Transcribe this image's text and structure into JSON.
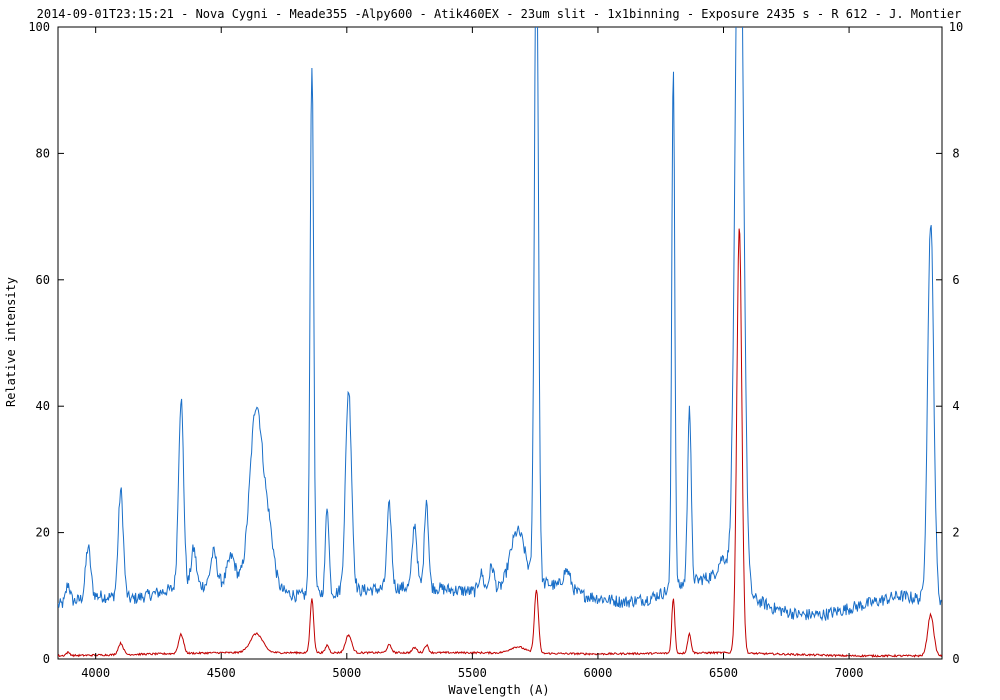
{
  "chart_data": {
    "type": "line",
    "title": "2014-09-01T23:15:21 - Nova Cygni - Meade355 -Alpy600 - Atik460EX - 23um slit - 1x1binning - Exposure 2435 s - R 612 - J. Montier",
    "xlabel": "Wavelength (A)",
    "ylabel": "Relative intensity",
    "xlim": [
      3850,
      7370
    ],
    "ylim": [
      0,
      100
    ],
    "y2lim": [
      0,
      10
    ],
    "x_ticks": [
      4000,
      4500,
      5000,
      5500,
      6000,
      6500,
      7000
    ],
    "y_ticks": [
      0,
      20,
      40,
      60,
      80,
      100
    ],
    "y2_ticks": [
      0,
      2,
      4,
      6,
      8,
      10
    ],
    "grid": false,
    "series": [
      {
        "color": "#1a6fc8",
        "axis": "left",
        "continuum": [
          [
            3850,
            8.5
          ],
          [
            3900,
            9
          ],
          [
            4000,
            10
          ],
          [
            4150,
            9.5
          ],
          [
            4300,
            11
          ],
          [
            4500,
            12
          ],
          [
            4600,
            12.5
          ],
          [
            4800,
            10
          ],
          [
            4950,
            10.5
          ],
          [
            5100,
            11
          ],
          [
            5300,
            11.5
          ],
          [
            5400,
            11
          ],
          [
            5550,
            10.5
          ],
          [
            5650,
            11
          ],
          [
            5800,
            12
          ],
          [
            5950,
            10
          ],
          [
            6100,
            9
          ],
          [
            6200,
            9.5
          ],
          [
            6350,
            12
          ],
          [
            6450,
            13
          ],
          [
            6600,
            10
          ],
          [
            6700,
            8
          ],
          [
            6800,
            7
          ],
          [
            6900,
            7
          ],
          [
            7000,
            8
          ],
          [
            7100,
            9
          ],
          [
            7200,
            10
          ],
          [
            7370,
            9
          ]
        ],
        "peaks": [
          {
            "x": 3890,
            "h": 3,
            "w": 8
          },
          {
            "x": 3970,
            "h": 8,
            "w": 10
          },
          {
            "x": 4100,
            "h": 17,
            "w": 10
          },
          {
            "x": 4340,
            "h": 30,
            "w": 10
          },
          {
            "x": 4390,
            "h": 6,
            "w": 10
          },
          {
            "x": 4470,
            "h": 5,
            "w": 12
          },
          {
            "x": 4540,
            "h": 4,
            "w": 15
          },
          {
            "x": 4640,
            "h": 28,
            "w": 25
          },
          {
            "x": 4690,
            "h": 8,
            "w": 20
          },
          {
            "x": 4861,
            "h": 84,
            "w": 7
          },
          {
            "x": 4922,
            "h": 14,
            "w": 7
          },
          {
            "x": 5007,
            "h": 32,
            "w": 12
          },
          {
            "x": 5169,
            "h": 13,
            "w": 9
          },
          {
            "x": 5270,
            "h": 10,
            "w": 9
          },
          {
            "x": 5317,
            "h": 14,
            "w": 8
          },
          {
            "x": 5535,
            "h": 3,
            "w": 10
          },
          {
            "x": 5577,
            "h": 4,
            "w": 10
          },
          {
            "x": 5680,
            "h": 9,
            "w": 30
          },
          {
            "x": 5755,
            "h": 105,
            "w": 8
          },
          {
            "x": 5876,
            "h": 3,
            "w": 15
          },
          {
            "x": 6300,
            "h": 83,
            "w": 6
          },
          {
            "x": 6364,
            "h": 28,
            "w": 7
          },
          {
            "x": 6500,
            "h": 4,
            "w": 20
          },
          {
            "x": 6563,
            "h": 125,
            "w": 16
          },
          {
            "x": 7325,
            "h": 60,
            "w": 12
          }
        ],
        "noise": 1.0
      },
      {
        "color": "#c00000",
        "axis": "left",
        "continuum": [
          [
            3850,
            0.5
          ],
          [
            4500,
            1
          ],
          [
            5000,
            1
          ],
          [
            5500,
            1
          ],
          [
            6000,
            0.8
          ],
          [
            6500,
            1
          ],
          [
            7000,
            0.5
          ],
          [
            7370,
            0.5
          ]
        ],
        "peaks": [
          {
            "x": 3890,
            "h": 0.5,
            "w": 8
          },
          {
            "x": 4100,
            "h": 1.8,
            "w": 10
          },
          {
            "x": 4340,
            "h": 3,
            "w": 10
          },
          {
            "x": 4640,
            "h": 3,
            "w": 25
          },
          {
            "x": 4861,
            "h": 8.5,
            "w": 7
          },
          {
            "x": 4922,
            "h": 1.2,
            "w": 7
          },
          {
            "x": 5007,
            "h": 2.8,
            "w": 12
          },
          {
            "x": 5169,
            "h": 1.2,
            "w": 9
          },
          {
            "x": 5270,
            "h": 0.8,
            "w": 9
          },
          {
            "x": 5317,
            "h": 1.2,
            "w": 8
          },
          {
            "x": 5680,
            "h": 1,
            "w": 30
          },
          {
            "x": 5755,
            "h": 10,
            "w": 8
          },
          {
            "x": 6300,
            "h": 8.7,
            "w": 6
          },
          {
            "x": 6364,
            "h": 3,
            "w": 7
          },
          {
            "x": 6563,
            "h": 67.5,
            "w": 10
          },
          {
            "x": 7325,
            "h": 6.5,
            "w": 12
          }
        ],
        "noise": 0.15
      }
    ]
  }
}
